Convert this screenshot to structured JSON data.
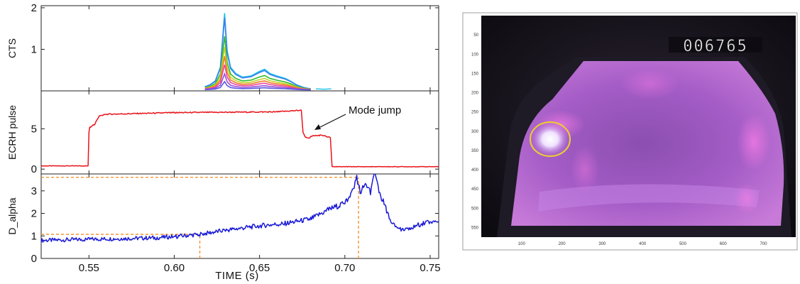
{
  "figure": {
    "xaxis": {
      "label": "TIME (s)",
      "range": [
        0.522,
        0.755
      ],
      "ticks": [
        0.55,
        0.6,
        0.65,
        0.7,
        0.75
      ],
      "tick_labels": [
        "0.55",
        "0.60",
        "0.65",
        "0.70",
        "0.75"
      ]
    },
    "annotation": {
      "text": "Mode jump",
      "target_x": 0.676,
      "target_y": 5.9
    },
    "camera": {
      "counter": "006765",
      "xticks": [
        "100",
        "200",
        "300",
        "400",
        "500",
        "600",
        "700"
      ],
      "yticks": [
        "50",
        "100",
        "150",
        "200",
        "250",
        "300",
        "350",
        "400",
        "450",
        "500",
        "550"
      ],
      "highlight": {
        "x": 162,
        "y": 320,
        "rx": 28,
        "ry": 24
      },
      "colors": {
        "plasma": "#b565d0",
        "bright": "#f2e8ff",
        "circle": "#e8c93a"
      }
    }
  },
  "chart_data": [
    {
      "type": "line",
      "panel": "cts",
      "ylabel": "CTS",
      "ylim": [
        0,
        2.05
      ],
      "yticks": [
        1,
        2
      ],
      "ytick_labels": [
        "1",
        "2"
      ],
      "xlim": [
        0.522,
        0.755
      ],
      "grid": false,
      "x": [
        0.618,
        0.621,
        0.624,
        0.627,
        0.6295,
        0.631,
        0.633,
        0.636,
        0.64,
        0.645,
        0.65,
        0.653,
        0.656,
        0.66,
        0.665,
        0.668,
        0.672,
        0.676,
        0.68
      ],
      "base": [
        0.08,
        0.13,
        0.22,
        0.55,
        1.85,
        0.95,
        0.55,
        0.4,
        0.31,
        0.34,
        0.45,
        0.5,
        0.4,
        0.34,
        0.28,
        0.22,
        0.12,
        0.06,
        0.03
      ],
      "series": [
        {
          "scale": 1.0,
          "color": "#19c3e8"
        },
        {
          "scale": 0.94,
          "color": "#3f7ff0"
        },
        {
          "scale": 0.7,
          "color": "#2dbb2d"
        },
        {
          "scale": 0.56,
          "color": "#c4d42a"
        },
        {
          "scale": 0.44,
          "color": "#f07e2a"
        },
        {
          "scale": 0.33,
          "color": "#e84a9c"
        },
        {
          "scale": 0.21,
          "color": "#9b4fd8"
        },
        {
          "scale": 0.11,
          "color": "#5a5ae0"
        }
      ],
      "tail_x": [
        0.683,
        0.688,
        0.692
      ],
      "tail_y": [
        0.05,
        0.04,
        0.05
      ],
      "tail_color": "#19c3e8"
    },
    {
      "type": "line",
      "panel": "ecrh",
      "ylabel": "ECRH pulse",
      "ylim": [
        -0.6,
        9.7
      ],
      "yticks": [
        0,
        5
      ],
      "ytick_labels": [
        "0",
        "5"
      ],
      "xlim": [
        0.522,
        0.755
      ],
      "grid": false,
      "color": "#e8141b",
      "series": [
        {
          "name": "",
          "x": [
            0.522,
            0.5495,
            0.55,
            0.5505,
            0.5515,
            0.5535,
            0.556,
            0.56,
            0.6,
            0.66,
            0.6745,
            0.6755,
            0.677,
            0.679,
            0.68,
            0.686,
            0.69,
            0.6915,
            0.6925,
            0.7,
            0.755
          ],
          "y": [
            0.4,
            0.4,
            4.6,
            5.2,
            5.3,
            5.6,
            6.6,
            6.8,
            7.0,
            7.1,
            7.3,
            4.5,
            3.9,
            3.8,
            4.1,
            4.2,
            4.0,
            3.9,
            0.3,
            0.3,
            0.3
          ]
        }
      ]
    },
    {
      "type": "line",
      "panel": "dalpha",
      "ylabel": "D_alpha",
      "ylim": [
        0,
        3.75
      ],
      "yticks": [
        0,
        1,
        2,
        3
      ],
      "ytick_labels": [
        "0",
        "1",
        "2",
        "3"
      ],
      "xlim": [
        0.522,
        0.755
      ],
      "grid": false,
      "color": "#1a1ad6",
      "series": [
        {
          "name": "",
          "x": [
            0.522,
            0.55,
            0.57,
            0.59,
            0.6,
            0.615,
            0.63,
            0.65,
            0.665,
            0.68,
            0.69,
            0.698,
            0.703,
            0.707,
            0.709,
            0.712,
            0.715,
            0.7175,
            0.72,
            0.723,
            0.727,
            0.733,
            0.74,
            0.748,
            0.755
          ],
          "y": [
            0.8,
            0.85,
            0.88,
            0.92,
            0.97,
            1.07,
            1.25,
            1.45,
            1.55,
            1.75,
            2.15,
            2.4,
            2.65,
            3.6,
            2.95,
            3.3,
            2.9,
            3.78,
            2.9,
            2.45,
            1.55,
            1.3,
            1.4,
            1.62,
            1.65
          ]
        }
      ],
      "reference_lines": [
        {
          "y": 3.6,
          "x0": 0.522,
          "x1": 0.708,
          "color": "#f58b1f"
        },
        {
          "x": 0.708,
          "y0": 0,
          "y1": 3.6,
          "color": "#f58b1f"
        },
        {
          "y": 1.07,
          "x0": 0.522,
          "x1": 0.615,
          "color": "#f58b1f"
        },
        {
          "x": 0.615,
          "y0": 0,
          "y1": 1.07,
          "color": "#f58b1f"
        }
      ]
    }
  ]
}
